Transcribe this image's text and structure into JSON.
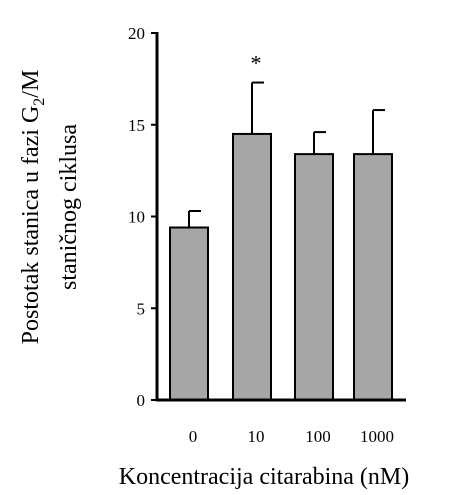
{
  "chart_data": {
    "type": "bar",
    "categories": [
      "0",
      "10",
      "100",
      "1000"
    ],
    "values": [
      9.4,
      14.5,
      13.4,
      13.4
    ],
    "error_plus": [
      0.9,
      2.8,
      1.2,
      2.4
    ],
    "significance": [
      "",
      "*",
      "",
      ""
    ],
    "ylim": [
      0,
      20
    ],
    "yticks": [
      0,
      5,
      10,
      15,
      20
    ],
    "ylabel_line1_prefix": "Postotak stanica u fazi G",
    "ylabel_line1_sub": "2",
    "ylabel_line1_suffix": "/M",
    "ylabel_line2": "staničnog ciklusa",
    "xlabel": "Koncentracija citarabina (nM)",
    "bar_color": "#a6a6a6",
    "grid": false
  }
}
